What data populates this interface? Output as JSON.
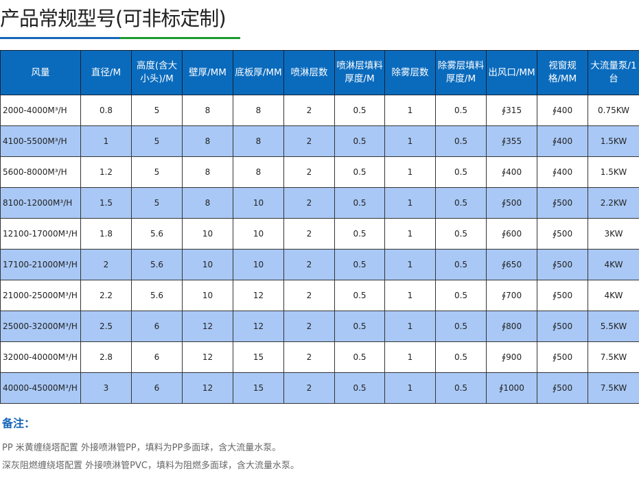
{
  "title": "产品常规型号(可非标定制)",
  "colors": {
    "header_bg": "#0a6bbd",
    "alt_row": "#a9c8f5",
    "title_line_blue": "#1565b8",
    "title_line_green": "#1a9a2e"
  },
  "table": {
    "headers": [
      "风量",
      "直径/M",
      "高度(含大小头)/M",
      "壁厚/MM",
      "底板厚/MM",
      "喷淋层数",
      "喷淋层填料厚度/M",
      "除雾层数",
      "除雾层填料厚度/M",
      "出风口/MM",
      "视窗规格/MM",
      "大流量泵/1台"
    ],
    "rows": [
      [
        "2000-4000M³/H",
        "0.8",
        "5",
        "8",
        "8",
        "2",
        "0.5",
        "1",
        "0.5",
        "∮315",
        "∮400",
        "0.75KW"
      ],
      [
        "4100-5500M³/H",
        "1",
        "5",
        "8",
        "8",
        "2",
        "0.5",
        "1",
        "0.5",
        "∮355",
        "∮400",
        "1.5KW"
      ],
      [
        "5600-8000M³/H",
        "1.2",
        "5",
        "8",
        "8",
        "2",
        "0.5",
        "1",
        "0.5",
        "∮400",
        "∮400",
        "1.5KW"
      ],
      [
        "8100-12000M³/H",
        "1.5",
        "5",
        "8",
        "10",
        "2",
        "0.5",
        "1",
        "0.5",
        "∮500",
        "∮500",
        "2.2KW"
      ],
      [
        "12100-17000M³/H",
        "1.8",
        "5.6",
        "10",
        "10",
        "2",
        "0.5",
        "1",
        "0.5",
        "∮600",
        "∮500",
        "3KW"
      ],
      [
        "17100-21000M³/H",
        "2",
        "5.6",
        "10",
        "10",
        "2",
        "0.5",
        "1",
        "0.5",
        "∮650",
        "∮500",
        "4KW"
      ],
      [
        "21000-25000M³/H",
        "2.2",
        "5.6",
        "10",
        "12",
        "2",
        "0.5",
        "1",
        "0.5",
        "∮700",
        "∮500",
        "4KW"
      ],
      [
        "25000-32000M³/H",
        "2.5",
        "6",
        "12",
        "12",
        "2",
        "0.5",
        "1",
        "0.5",
        "∮800",
        "∮500",
        "5.5KW"
      ],
      [
        "32000-40000M³/H",
        "2.8",
        "6",
        "12",
        "15",
        "2",
        "0.5",
        "1",
        "0.5",
        "∮900",
        "∮500",
        "7.5KW"
      ],
      [
        "40000-45000M³/H",
        "3",
        "6",
        "12",
        "15",
        "2",
        "0.5",
        "1",
        "0.5",
        "∮1000",
        "∮500",
        "7.5KW"
      ]
    ]
  },
  "notes": {
    "title": "备注：",
    "lines": [
      "PP 米黄缠绕塔配置 外接喷淋管PP，填料为PP多面球，含大流量水泵。",
      "深灰阻燃缠绕塔配置 外接喷淋管PVC，填料为阻燃多面球，含大流量水泵。"
    ]
  }
}
